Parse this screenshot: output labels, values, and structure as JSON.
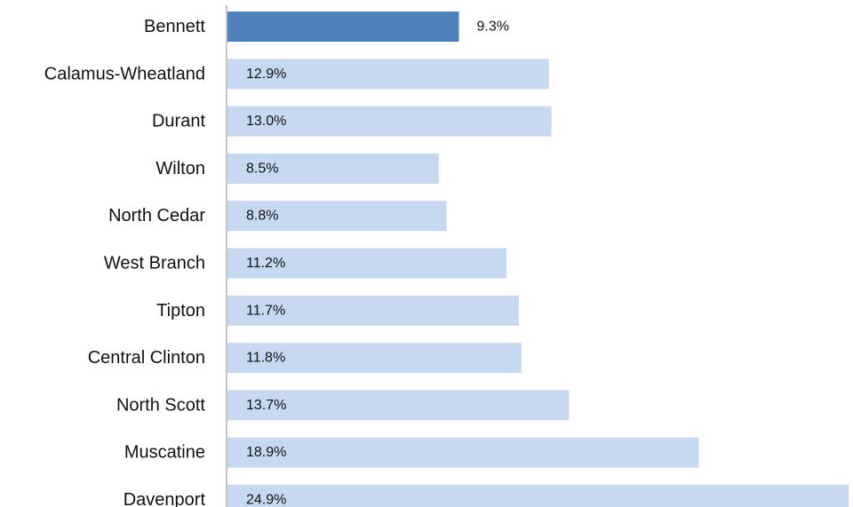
{
  "chart_data": {
    "type": "bar",
    "orientation": "horizontal",
    "categories": [
      "Bennett",
      "Calamus-Wheatland",
      "Durant",
      "Wilton",
      "North Cedar",
      "West Branch",
      "Tipton",
      "Central Clinton",
      "North Scott",
      "Muscatine",
      "Davenport"
    ],
    "values": [
      9.3,
      12.9,
      13.0,
      8.5,
      8.8,
      11.2,
      11.7,
      11.8,
      13.7,
      18.9,
      24.9
    ],
    "value_labels": [
      "9.3%",
      "12.9%",
      "13.0%",
      "8.5%",
      "8.8%",
      "11.2%",
      "11.7%",
      "11.8%",
      "13.7%",
      "18.9%",
      "24.9%"
    ],
    "highlight_index": 0,
    "colors": {
      "highlight": "#4f81bd",
      "bar": "#c6d9f1",
      "axis": "#888888"
    },
    "xlim": [
      0,
      25
    ],
    "title": "",
    "xlabel": "",
    "ylabel": "",
    "grid": false,
    "legend": "none"
  }
}
